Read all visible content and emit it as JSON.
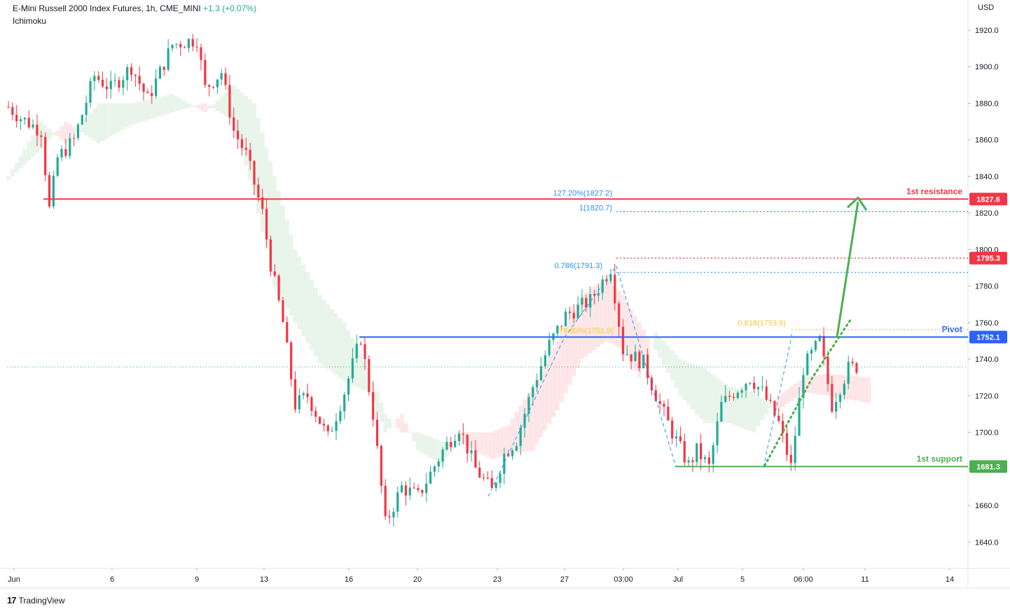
{
  "header": {
    "title": "E-Mini Russell 2000 Index Futures, 1h, CME_MINI",
    "change": "+1.3 (+0.07%)",
    "indicator": "Ichimoku"
  },
  "currency": "USD",
  "branding": "TradingView",
  "colors": {
    "up": "#22ab94",
    "down": "#f23645",
    "resistance": "#f23645",
    "pivot": "#2962ff",
    "support": "#4caf50",
    "fib": "#2196f3",
    "fib_gold": "#f7c531",
    "cloud_bull": "#4caf50",
    "cloud_bear": "#f23645"
  },
  "chart_data": {
    "type": "candlestick",
    "title": "E-Mini Russell 2000 Index Futures",
    "interval": "1h",
    "ylim": [
      1630,
      1930
    ],
    "y_ticks": [
      1640,
      1660,
      1680,
      1700,
      1720,
      1740,
      1760,
      1780,
      1800,
      1820,
      1840,
      1860,
      1880,
      1900,
      1920
    ],
    "x_ticks": [
      "Jun",
      "6",
      "9",
      "13",
      "16",
      "20",
      "23",
      "27",
      "03:00",
      "Jul",
      "5",
      "06:00",
      "11",
      "14"
    ],
    "last_price": 1735.8,
    "price_path": [
      [
        0,
        1878
      ],
      [
        3,
        1872
      ],
      [
        8,
        1865
      ],
      [
        10,
        1822
      ],
      [
        12,
        1850
      ],
      [
        16,
        1860
      ],
      [
        21,
        1895
      ],
      [
        25,
        1888
      ],
      [
        30,
        1900
      ],
      [
        34,
        1882
      ],
      [
        40,
        1912
      ],
      [
        46,
        1915
      ],
      [
        48,
        1888
      ],
      [
        52,
        1897
      ],
      [
        55,
        1865
      ],
      [
        58,
        1852
      ],
      [
        62,
        1820
      ],
      [
        64,
        1792
      ],
      [
        67,
        1760
      ],
      [
        70,
        1715
      ],
      [
        73,
        1720
      ],
      [
        78,
        1697
      ],
      [
        82,
        1722
      ],
      [
        86,
        1752
      ],
      [
        89,
        1710
      ],
      [
        92,
        1650
      ],
      [
        96,
        1670
      ],
      [
        100,
        1665
      ],
      [
        106,
        1690
      ],
      [
        110,
        1703
      ],
      [
        114,
        1680
      ],
      [
        118,
        1668
      ],
      [
        121,
        1688
      ],
      [
        124,
        1696
      ],
      [
        128,
        1725
      ],
      [
        132,
        1748
      ],
      [
        136,
        1764
      ],
      [
        142,
        1772
      ],
      [
        147,
        1790
      ],
      [
        150,
        1745
      ],
      [
        155,
        1738
      ],
      [
        159,
        1715
      ],
      [
        162,
        1700
      ],
      [
        166,
        1682
      ],
      [
        168,
        1690
      ],
      [
        171,
        1681
      ],
      [
        174,
        1715
      ],
      [
        177,
        1722
      ],
      [
        181,
        1730
      ],
      [
        184,
        1722
      ],
      [
        188,
        1705
      ],
      [
        191,
        1681
      ],
      [
        194,
        1735
      ],
      [
        198,
        1750
      ],
      [
        201,
        1715
      ],
      [
        205,
        1735
      ],
      [
        207,
        1736
      ]
    ],
    "cloud": [
      [
        0,
        1840,
        1838
      ],
      [
        8,
        1870,
        1855
      ],
      [
        14,
        1858,
        1870
      ],
      [
        22,
        1880,
        1858
      ],
      [
        30,
        1880,
        1868
      ],
      [
        40,
        1885,
        1875
      ],
      [
        48,
        1875,
        1880
      ],
      [
        55,
        1890,
        1870
      ],
      [
        60,
        1880,
        1830
      ],
      [
        65,
        1840,
        1780
      ],
      [
        70,
        1800,
        1760
      ],
      [
        76,
        1775,
        1738
      ],
      [
        82,
        1760,
        1728
      ],
      [
        88,
        1735,
        1722
      ],
      [
        92,
        1710,
        1700
      ],
      [
        96,
        1700,
        1710
      ],
      [
        100,
        1700,
        1690
      ],
      [
        106,
        1695,
        1682
      ],
      [
        110,
        1695,
        1700
      ],
      [
        114,
        1690,
        1700
      ],
      [
        118,
        1685,
        1700
      ],
      [
        122,
        1688,
        1704
      ],
      [
        128,
        1690,
        1725
      ],
      [
        134,
        1712,
        1750
      ],
      [
        140,
        1740,
        1775
      ],
      [
        146,
        1750,
        1785
      ],
      [
        150,
        1745,
        1775
      ],
      [
        154,
        1730,
        1760
      ],
      [
        158,
        1755,
        1745
      ],
      [
        164,
        1740,
        1720
      ],
      [
        170,
        1735,
        1705
      ],
      [
        176,
        1725,
        1705
      ],
      [
        182,
        1722,
        1700
      ],
      [
        188,
        1712,
        1720
      ],
      [
        194,
        1722,
        1730
      ],
      [
        200,
        1720,
        1732
      ],
      [
        210,
        1716,
        1730
      ]
    ],
    "levels": [
      {
        "name": "1st resistance",
        "value": 1827.6,
        "label": "1827.6"
      },
      {
        "name": "Pivot",
        "value": 1752.1,
        "label": "1752.1"
      },
      {
        "name": "1st support",
        "value": 1681.3,
        "label": "1681.3"
      }
    ],
    "fib_labels": [
      {
        "text": "127.20%(1827.2)",
        "value": 1827.2,
        "dotted": false
      },
      {
        "text": "1(1820.7)",
        "value": 1820.7,
        "dotted": true
      },
      {
        "text": "0.786(1791.3)",
        "value": 1791.3,
        "dotted": true
      },
      {
        "text": "78.60%(1751.9)",
        "value": 1751.9,
        "dotted": false
      },
      {
        "text": "0.618(1753.9)",
        "value": 1753.9,
        "dotted": true
      }
    ],
    "extra_price_label": {
      "value": 1795.3,
      "label": "1795.3"
    },
    "projection": {
      "from_value": 1752.1,
      "to_value": 1827.6
    }
  }
}
